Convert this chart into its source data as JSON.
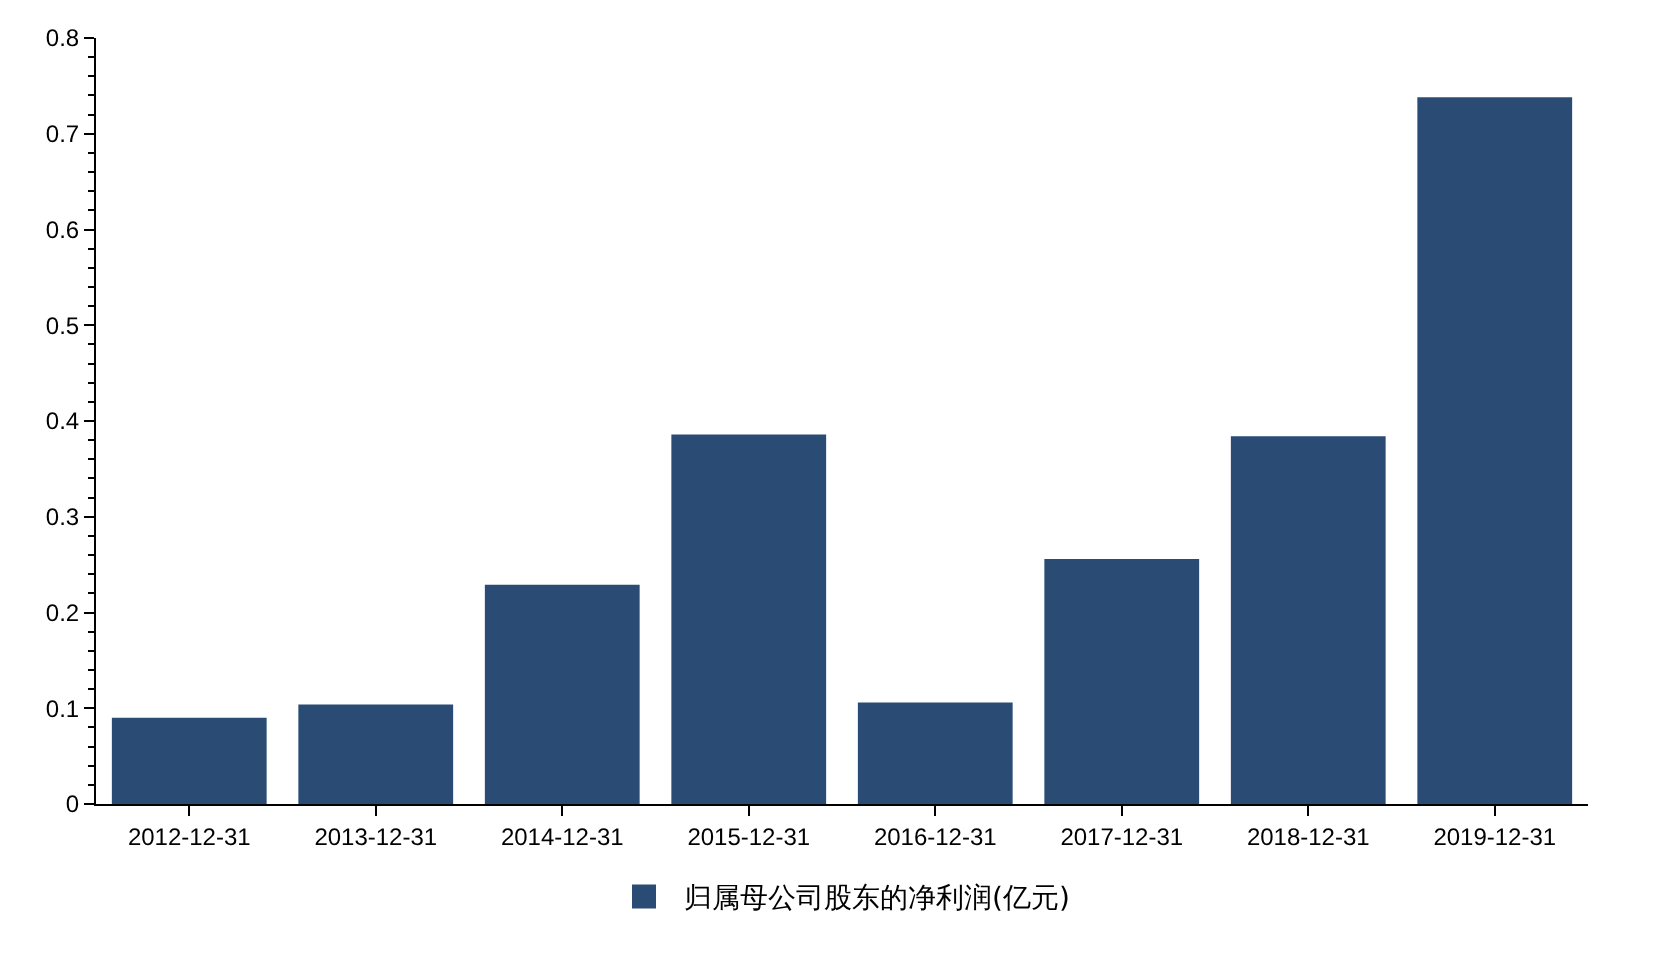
{
  "chart_data": {
    "type": "bar",
    "categories": [
      "2012-12-31",
      "2013-12-31",
      "2014-12-31",
      "2015-12-31",
      "2016-12-31",
      "2017-12-31",
      "2018-12-31",
      "2019-12-31"
    ],
    "series": [
      {
        "name": "归属母公司股东的净利润(亿元)",
        "color": "#2a4c74",
        "values": [
          0.09,
          0.104,
          0.229,
          0.386,
          0.106,
          0.256,
          0.384,
          0.738
        ]
      }
    ],
    "ylim": [
      0,
      0.8
    ],
    "yticks": [
      0,
      0.1,
      0.2,
      0.3,
      0.4,
      0.5,
      0.6,
      0.7,
      0.8
    ],
    "legend": "bottom"
  }
}
